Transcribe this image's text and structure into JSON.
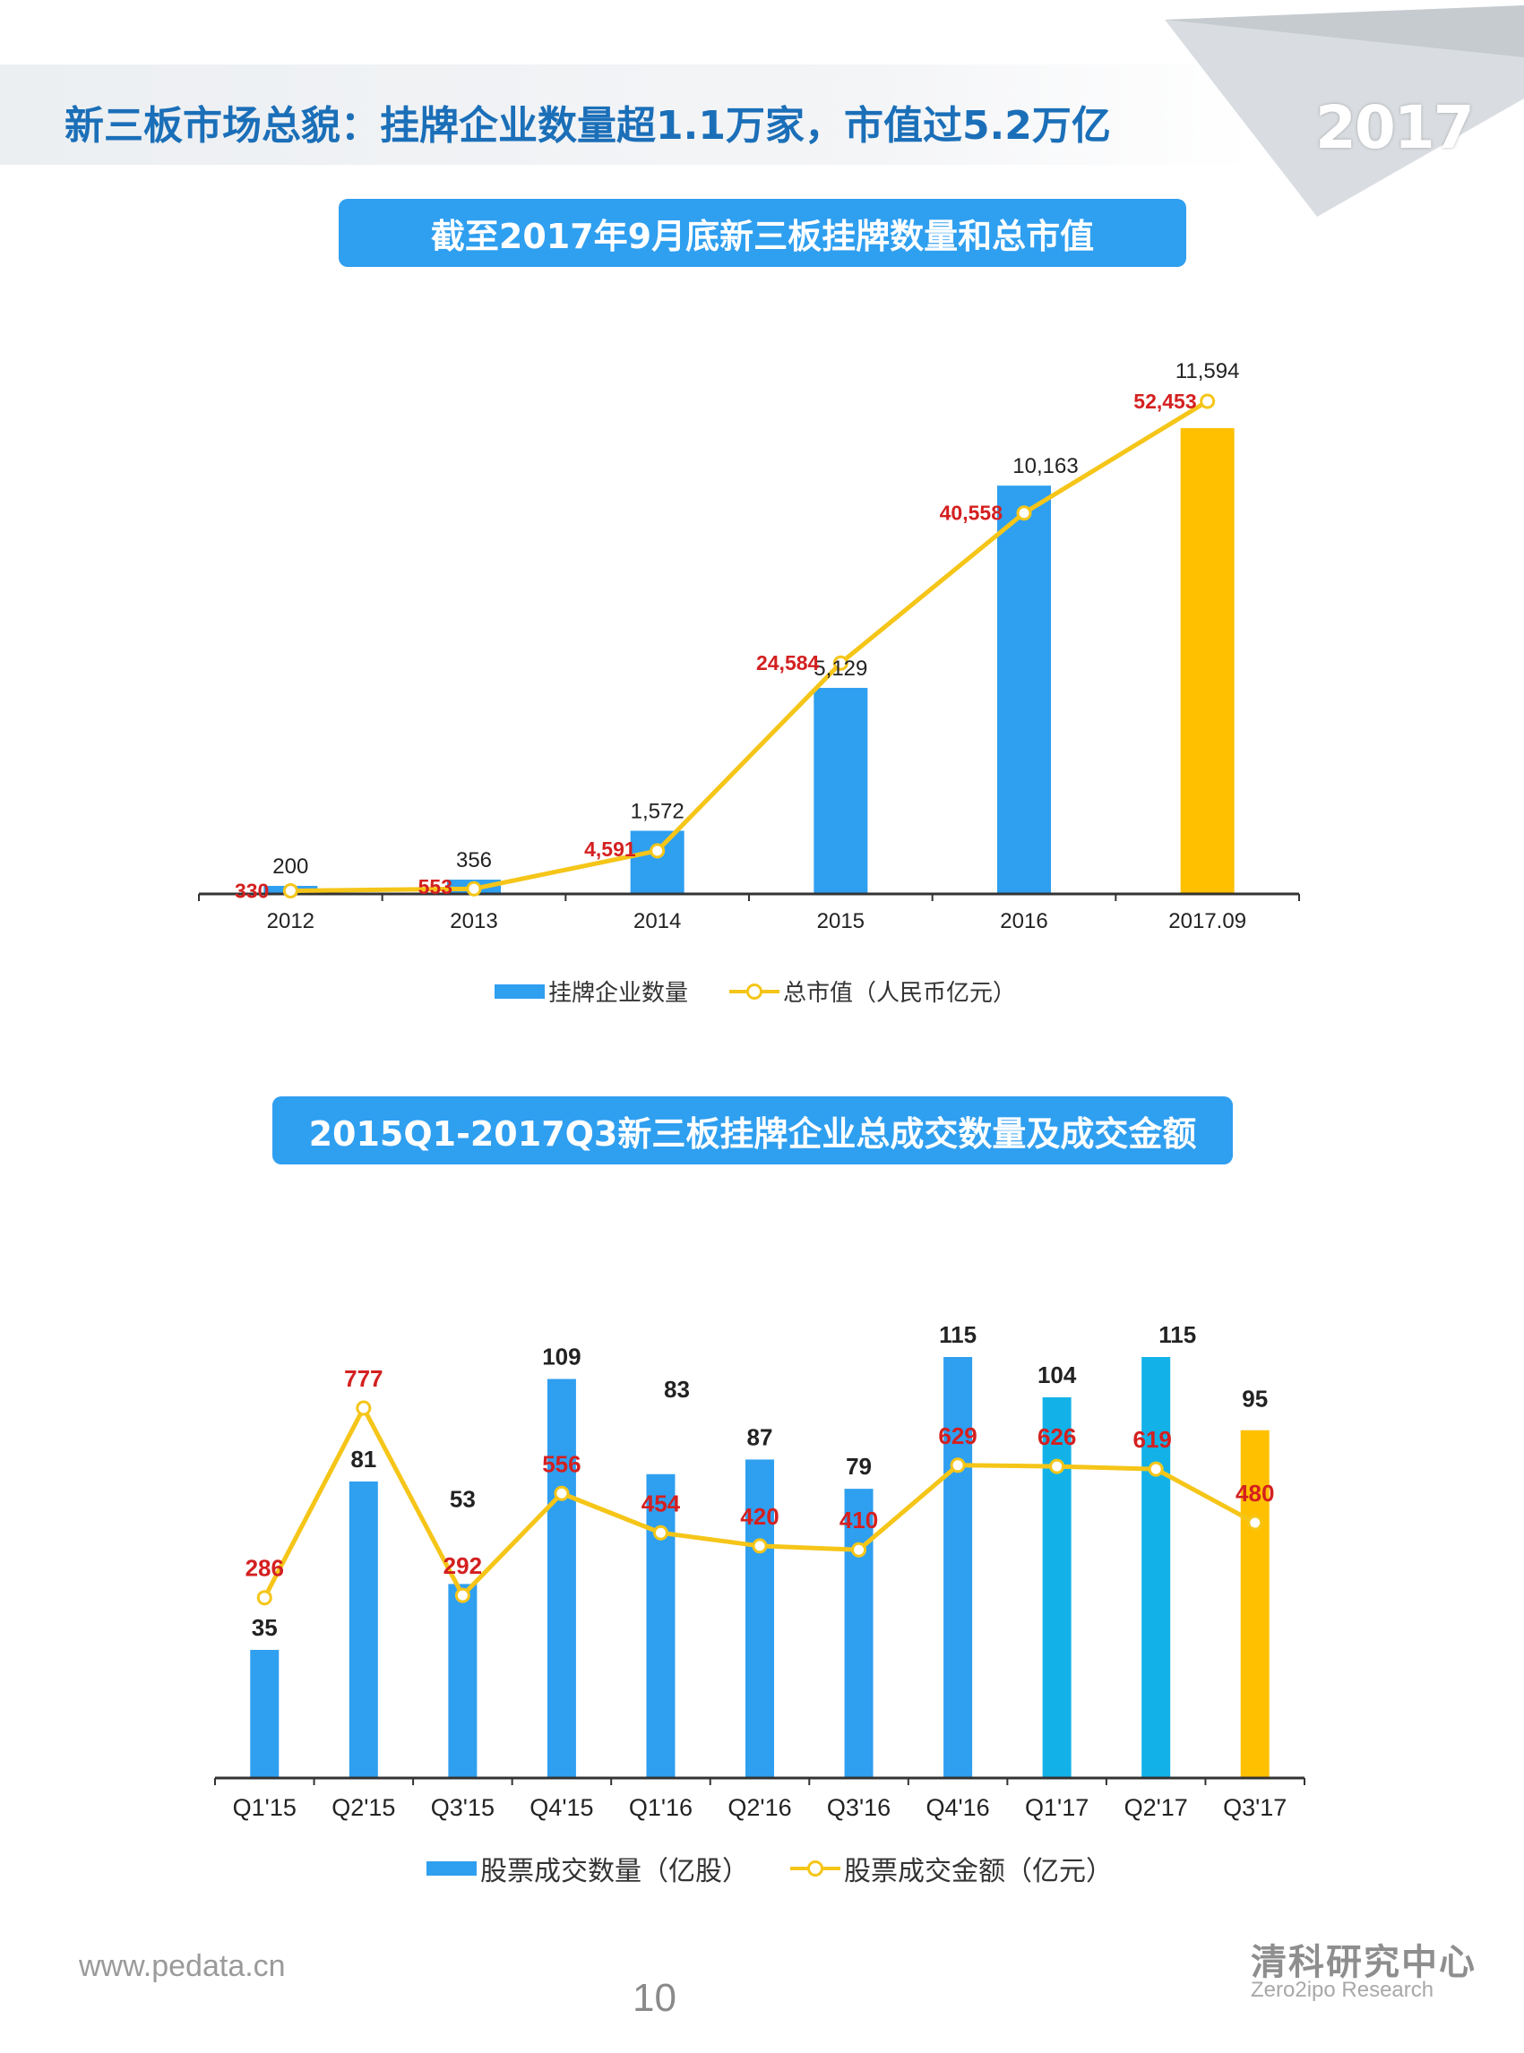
{
  "header": {
    "title": "新三板市场总貌：挂牌企业数量超1.1万家，市值过5.2万亿",
    "year_badge": "2017"
  },
  "chart_data": [
    {
      "type": "bar",
      "title": "截至2017年9月底新三板挂牌数量和总市值",
      "categories": [
        "2012",
        "2013",
        "2014",
        "2015",
        "2016",
        "2017.09"
      ],
      "series": [
        {
          "name": "挂牌企业数量",
          "type": "bar",
          "values": [
            200,
            356,
            1572,
            5129,
            10163,
            11594
          ],
          "labels": [
            "200",
            "356",
            "1,572",
            "5,129",
            "10,163",
            "11,594"
          ],
          "colors": [
            "#2f9ff0",
            "#2f9ff0",
            "#2f9ff0",
            "#2f9ff0",
            "#2f9ff0",
            "#ffc000"
          ]
        },
        {
          "name": "总市值（人民币亿元）",
          "type": "line",
          "values": [
            330,
            553,
            4591,
            24584,
            40558,
            52453
          ],
          "labels": [
            "330",
            "553",
            "4,591",
            "24,584",
            "40,558",
            "52,453"
          ],
          "color": "#f5c518",
          "label_color": "#d42020"
        }
      ],
      "legend": [
        "挂牌企业数量",
        "总市值（人民币亿元）"
      ],
      "legend_position": "bottom",
      "grid": false
    },
    {
      "type": "bar",
      "title": "2015Q1-2017Q3新三板挂牌企业总成交数量及成交金额",
      "categories": [
        "Q1'15",
        "Q2'15",
        "Q3'15",
        "Q4'15",
        "Q1'16",
        "Q2'16",
        "Q3'16",
        "Q4'16",
        "Q1'17",
        "Q2'17",
        "Q3'17"
      ],
      "series": [
        {
          "name": "股票成交数量（亿股）",
          "type": "bar",
          "values": [
            35,
            81,
            53,
            109,
            83,
            87,
            79,
            115,
            104,
            115,
            95
          ],
          "labels": [
            "35",
            "81",
            "53",
            "109",
            "83",
            "87",
            "79",
            "115",
            "104",
            "115",
            "95"
          ],
          "colors": [
            "#2f9ff0",
            "#2f9ff0",
            "#2f9ff0",
            "#2f9ff0",
            "#2f9ff0",
            "#2f9ff0",
            "#2f9ff0",
            "#2f9ff0",
            "#12b2e8",
            "#12b2e8",
            "#ffc000"
          ]
        },
        {
          "name": "股票成交金额（亿元）",
          "type": "line",
          "values": [
            286,
            777,
            292,
            556,
            454,
            420,
            410,
            629,
            626,
            619,
            480
          ],
          "labels": [
            "286",
            "777",
            "292",
            "556",
            "454",
            "420",
            "410",
            "629",
            "626",
            "619",
            "480"
          ],
          "color": "#f5c518",
          "label_color": "#d42020"
        }
      ],
      "legend": [
        "股票成交数量（亿股）",
        "股票成交金额（亿元）"
      ],
      "legend_position": "bottom",
      "grid": false
    }
  ],
  "footer": {
    "website": "www.pedata.cn",
    "page_number": "10",
    "brand_cn": "清科研究中心",
    "brand_en": "Zero2ipo Research"
  }
}
